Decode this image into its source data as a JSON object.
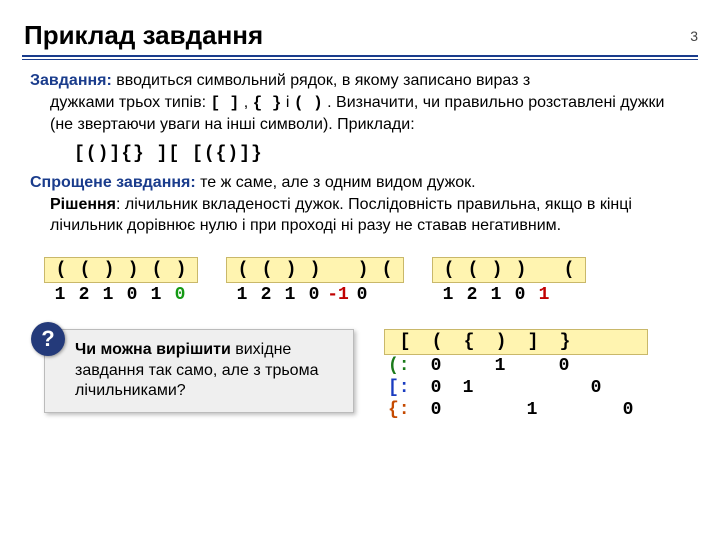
{
  "page_number": "3",
  "title": "Приклад завдання",
  "task_label": "Завдання:",
  "task_text_1": " вводиться символьний рядок, в якому записано вираз з",
  "task_text_2": "дужками трьох типів: ",
  "bracket_sq": "[ ]",
  "task_text_3": " , ",
  "bracket_cu": "{ }",
  "task_text_4": " і ",
  "bracket_pa": "( )",
  "task_text_5": " . Визначити, чи правильно розставлені дужки (не звертаючи уваги на інші символи). Приклади:",
  "examples": "[()]{}    ][    [({)]}",
  "simple_label": "Спрощене завдання:",
  "simple_text": " те ж саме, але з одним видом дужок.",
  "solution_label": "Рішення",
  "solution_text": ": лічильник вкладеності дужок. Послідовність правильна, якщо в кінці лічильник дорівнює нулю і при проході ні разу не ставав негативним.",
  "block1_head": [
    "(",
    "(",
    ")",
    ")",
    "(",
    ")"
  ],
  "block1_vals": [
    {
      "t": "1",
      "c": ""
    },
    {
      "t": "2",
      "c": ""
    },
    {
      "t": "1",
      "c": ""
    },
    {
      "t": "0",
      "c": ""
    },
    {
      "t": "1",
      "c": ""
    },
    {
      "t": "0",
      "c": "pos"
    }
  ],
  "block2_head": [
    "(",
    "(",
    ")",
    ")",
    "",
    ")",
    "("
  ],
  "block2_vals": [
    {
      "t": "1",
      "c": ""
    },
    {
      "t": "2",
      "c": ""
    },
    {
      "t": "1",
      "c": ""
    },
    {
      "t": "0",
      "c": ""
    },
    {
      "t": "-1",
      "c": "neg"
    },
    {
      "t": "0",
      "c": ""
    }
  ],
  "block3_head": [
    "(",
    "(",
    ")",
    ")",
    "",
    "("
  ],
  "block3_vals": [
    {
      "t": "1",
      "c": ""
    },
    {
      "t": "2",
      "c": ""
    },
    {
      "t": "1",
      "c": ""
    },
    {
      "t": "0",
      "c": ""
    },
    {
      "t": "1",
      "c": "neg"
    }
  ],
  "question_mark": "?",
  "question_bold": "Чи можна вирішити",
  "question_rest": " вихідне завдання так само, але з трьома лічильниками?",
  "rhead": [
    "[",
    "(",
    "{",
    ")",
    "]",
    "}"
  ],
  "row_paren_label": "(:",
  "row_paren": [
    "0",
    "",
    "1",
    "",
    "0",
    ""
  ],
  "row_square_label": "[:",
  "row_square": [
    "0",
    "1",
    "",
    "",
    "",
    "0"
  ],
  "row_curly_label": "{:",
  "row_curly": [
    "0",
    "",
    "",
    "1",
    "",
    "",
    "0"
  ]
}
